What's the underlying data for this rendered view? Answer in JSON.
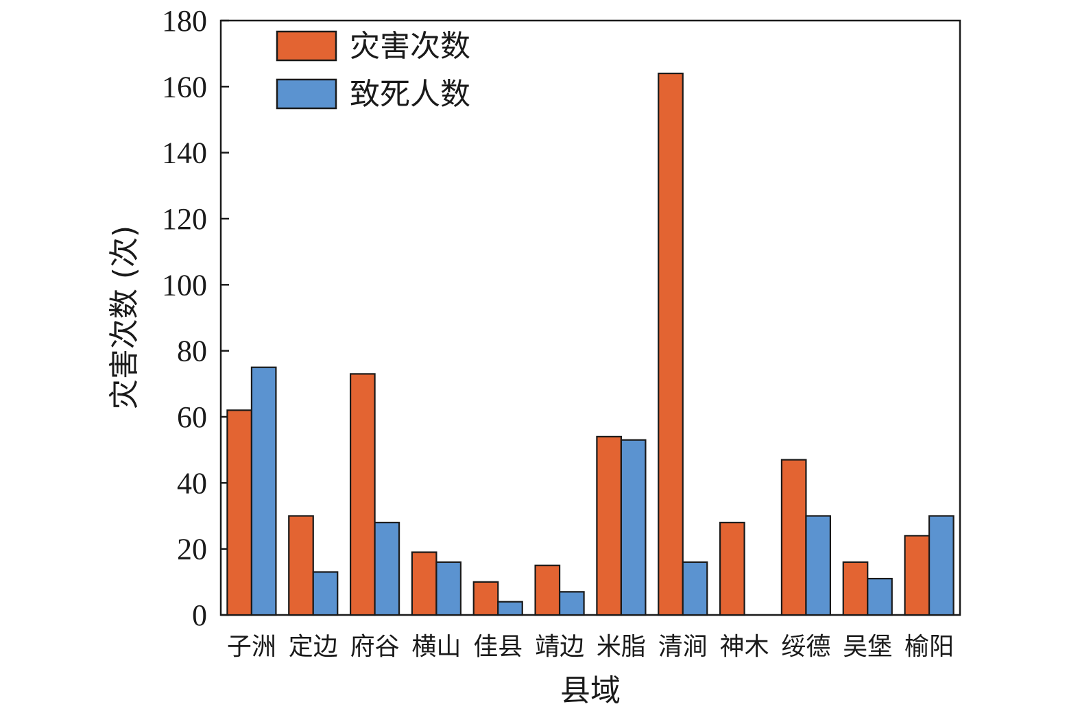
{
  "chart_data": {
    "type": "bar",
    "categories": [
      "子洲",
      "定边",
      "府谷",
      "横山",
      "佳县",
      "靖边",
      "米脂",
      "清涧",
      "神木",
      "绥德",
      "吴堡",
      "榆阳"
    ],
    "series": [
      {
        "name": "灾害次数",
        "color": "#E36432",
        "values": [
          62,
          30,
          73,
          19,
          10,
          15,
          54,
          164,
          28,
          47,
          16,
          24
        ]
      },
      {
        "name": "致死人数",
        "color": "#5B93D0",
        "values": [
          75,
          13,
          28,
          16,
          4,
          7,
          53,
          16,
          0,
          30,
          11,
          30
        ]
      }
    ],
    "xlabel": "县域",
    "ylabel": "灾害次数 (次)",
    "ylim": [
      0,
      180
    ],
    "yticks": [
      0,
      20,
      40,
      60,
      80,
      100,
      120,
      140,
      160,
      180
    ],
    "grid": false,
    "legend_position": "top-left"
  }
}
